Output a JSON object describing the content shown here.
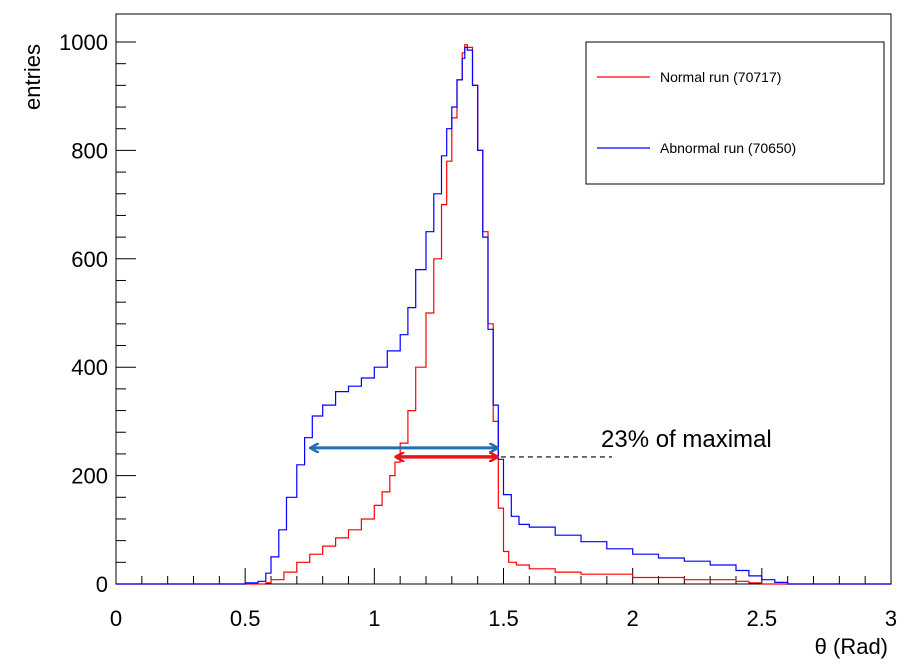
{
  "chart_data": {
    "type": "line",
    "xlabel": "θ (Rad)",
    "ylabel": "entries",
    "xlim": [
      0,
      3
    ],
    "ylim": [
      0,
      1020
    ],
    "xticks": [
      0,
      0.5,
      1,
      1.5,
      2,
      2.5,
      3
    ],
    "xtick_labels": [
      "0",
      "0.5",
      "1",
      "1.5",
      "2",
      "2.5",
      "3"
    ],
    "yticks": [
      0,
      200,
      400,
      600,
      800,
      1000
    ],
    "ytick_labels": [
      "0",
      "200",
      "400",
      "600",
      "800",
      "1000"
    ],
    "legend_placement": "top-right",
    "series": [
      {
        "name": "Normal run (70717)",
        "color": "#ff0000",
        "x": [
          0,
          0.5,
          0.55,
          0.58,
          0.6,
          0.65,
          0.7,
          0.75,
          0.8,
          0.85,
          0.9,
          0.95,
          1.0,
          1.03,
          1.06,
          1.08,
          1.1,
          1.13,
          1.16,
          1.2,
          1.23,
          1.26,
          1.28,
          1.3,
          1.32,
          1.34,
          1.35,
          1.36,
          1.38,
          1.4,
          1.42,
          1.44,
          1.46,
          1.48,
          1.5,
          1.52,
          1.55,
          1.6,
          1.7,
          1.8,
          2.0,
          2.2,
          2.4,
          2.45,
          2.5,
          2.55,
          3.0
        ],
        "y": [
          0,
          0,
          0,
          2,
          8,
          22,
          40,
          55,
          70,
          85,
          100,
          120,
          145,
          170,
          200,
          225,
          260,
          320,
          400,
          500,
          600,
          700,
          780,
          860,
          930,
          980,
          995,
          990,
          920,
          800,
          650,
          480,
          300,
          140,
          60,
          40,
          35,
          28,
          22,
          18,
          12,
          8,
          5,
          2,
          0,
          0,
          0
        ]
      },
      {
        "name": "Abnormal run (70650)",
        "color": "#0000ff",
        "x": [
          0,
          0.5,
          0.55,
          0.58,
          0.6,
          0.63,
          0.66,
          0.7,
          0.73,
          0.76,
          0.8,
          0.85,
          0.9,
          0.95,
          1.0,
          1.05,
          1.1,
          1.13,
          1.16,
          1.2,
          1.23,
          1.26,
          1.28,
          1.3,
          1.32,
          1.34,
          1.35,
          1.36,
          1.38,
          1.4,
          1.42,
          1.44,
          1.46,
          1.48,
          1.5,
          1.53,
          1.56,
          1.6,
          1.7,
          1.8,
          1.9,
          2.0,
          2.1,
          2.2,
          2.3,
          2.4,
          2.45,
          2.5,
          2.55,
          2.6,
          3.0
        ],
        "y": [
          0,
          2,
          5,
          20,
          50,
          100,
          160,
          220,
          270,
          310,
          330,
          355,
          365,
          380,
          400,
          430,
          460,
          510,
          580,
          650,
          720,
          790,
          840,
          880,
          930,
          970,
          990,
          985,
          920,
          800,
          640,
          470,
          330,
          230,
          165,
          125,
          110,
          105,
          90,
          78,
          65,
          55,
          48,
          42,
          35,
          25,
          15,
          8,
          3,
          0,
          0
        ]
      }
    ],
    "annotations": [
      {
        "text": "23% of maximal",
        "y": 240
      }
    ]
  }
}
